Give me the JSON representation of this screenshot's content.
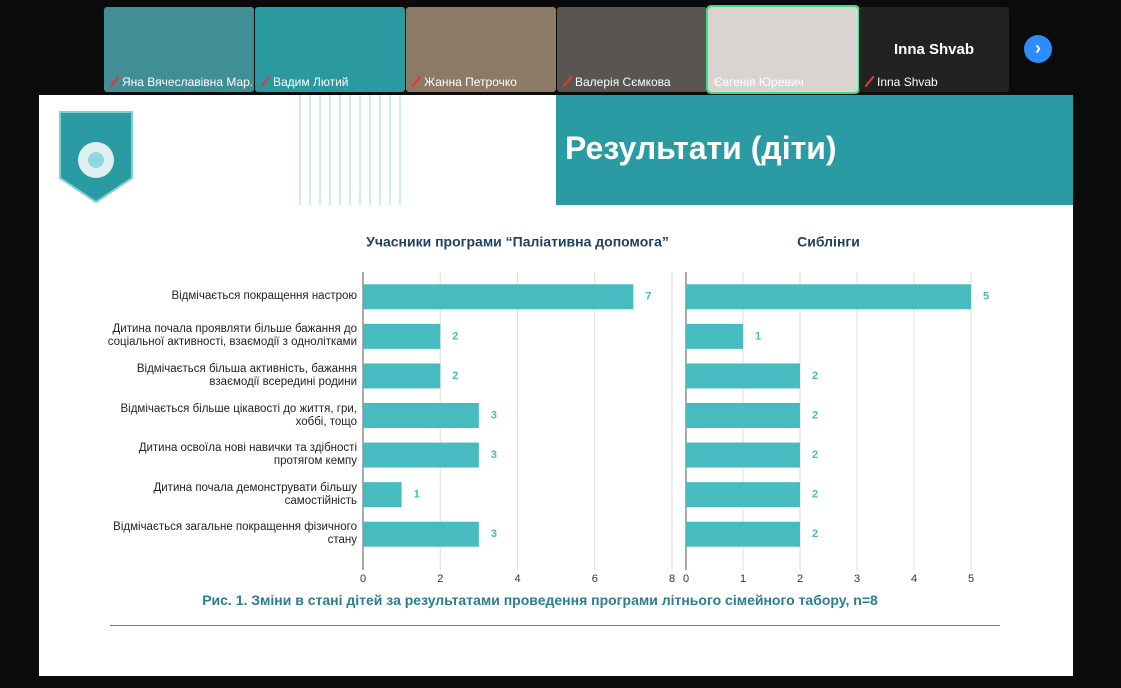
{
  "participants": [
    {
      "name": "Яна Вячеславівна Мар..."
    },
    {
      "name": "Вадим Лютий"
    },
    {
      "name": "Жанна Петрочко"
    },
    {
      "name": "Валерія Сємкова"
    },
    {
      "name": "Євгенія Юревич"
    },
    {
      "name": "Inna Shvab"
    }
  ],
  "slide": {
    "title": "Результати (діти)",
    "caption": "Рис. 1. Зміни в стані дітей за результатами проведення програми літнього сімейного табору, n=8"
  },
  "chart_data": [
    {
      "type": "bar",
      "orientation": "horizontal",
      "title": "Учасники програми “Паліативна допомога”",
      "categories": [
        "Відмічається  покращення настрою",
        "Дитина почала проявляти більше бажання до соціальної активності, взаємодії з однолітками",
        "Відмічається більша активність, бажання взаємодії всередині родини",
        "Відмічається більше цікавості до життя, гри, хоббі, тощо",
        "Дитина освоїла нові навички та здібності протягом кемпу",
        "Дитина почала демонструвати більшу самостійність",
        "Відмічається загальне покращення фізичного стану"
      ],
      "values": [
        7,
        2,
        2,
        3,
        3,
        1,
        3
      ],
      "color": "#47bcc0",
      "xlim": [
        0,
        8
      ],
      "xticks": [
        0,
        2,
        4,
        6,
        8
      ],
      "grid": true
    },
    {
      "type": "bar",
      "orientation": "horizontal",
      "title": "Сиблінги",
      "values": [
        5,
        1,
        2,
        2,
        2,
        2,
        2
      ],
      "color": "#47bcc0",
      "xlim": [
        0,
        5
      ],
      "xticks": [
        0,
        1,
        2,
        3,
        4,
        5
      ],
      "grid": true
    }
  ]
}
